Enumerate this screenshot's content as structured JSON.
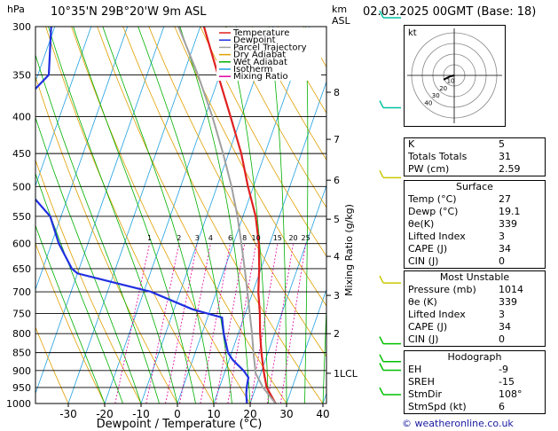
{
  "header": {
    "station": "10°35'N  29B°20'W  9m  ASL",
    "date": "02.03.2025  00GMT  (Base: 18)",
    "hpa_label": "hPa",
    "km_label": "km",
    "asl_label": "ASL"
  },
  "chart_data": {
    "type": "line",
    "subtype": "skew-t log-p",
    "xlabel": "Dewpoint / Temperature (°C)",
    "ylabel": "Mixing Ratio (g/kg)",
    "x_ticks": [
      -30,
      -20,
      -10,
      0,
      10,
      20,
      30,
      40
    ],
    "pressure_levels": [
      300,
      350,
      400,
      450,
      500,
      550,
      600,
      650,
      700,
      750,
      800,
      850,
      900,
      950,
      1000
    ],
    "km_ticks": [
      {
        "label": "8",
        "p": 370
      },
      {
        "label": "7",
        "p": 430
      },
      {
        "label": "6",
        "p": 490
      },
      {
        "label": "5",
        "p": 555
      },
      {
        "label": "4",
        "p": 625
      },
      {
        "label": "3",
        "p": 708
      },
      {
        "label": "2",
        "p": 800
      },
      {
        "label": "1LCL",
        "p": 908
      }
    ],
    "mixing_ratio_labels": [
      "1",
      "2",
      "3",
      "4",
      "6",
      "8",
      "10",
      "15",
      "20",
      "25"
    ],
    "mixing_ratios": [
      1,
      2,
      3,
      4,
      6,
      8,
      10,
      15,
      20,
      25
    ],
    "legend": [
      {
        "name": "Temperature",
        "color": "#e02020"
      },
      {
        "name": "Dewpoint",
        "color": "#2030e0"
      },
      {
        "name": "Parcel Trajectory",
        "color": "#a0a0a0"
      },
      {
        "name": "Dry Adiabat",
        "color": "#e0a000"
      },
      {
        "name": "Wet Adiabat",
        "color": "#00b000"
      },
      {
        "name": "Isotherm",
        "color": "#20a0e0"
      },
      {
        "name": "Mixing Ratio",
        "color": "#e000a0"
      }
    ],
    "series": [
      {
        "name": "Temperature",
        "color": "#e02020",
        "points": [
          [
            1000,
            27
          ],
          [
            950,
            23
          ],
          [
            900,
            20.5
          ],
          [
            850,
            18.2
          ],
          [
            800,
            16
          ],
          [
            750,
            14
          ],
          [
            700,
            11.5
          ],
          [
            650,
            9.5
          ],
          [
            600,
            7
          ],
          [
            550,
            3.5
          ],
          [
            500,
            -1.5
          ],
          [
            450,
            -6.5
          ],
          [
            400,
            -13
          ],
          [
            350,
            -20.5
          ],
          [
            300,
            -29
          ]
        ]
      },
      {
        "name": "Dewpoint",
        "color": "#2030e0",
        "points": [
          [
            1000,
            19.1
          ],
          [
            970,
            18
          ],
          [
            950,
            17.5
          ],
          [
            920,
            17
          ],
          [
            900,
            15
          ],
          [
            870,
            11
          ],
          [
            850,
            9
          ],
          [
            800,
            6
          ],
          [
            760,
            4
          ],
          [
            740,
            -5
          ],
          [
            700,
            -18
          ],
          [
            660,
            -40
          ],
          [
            650,
            -42
          ],
          [
            600,
            -48
          ],
          [
            550,
            -53
          ],
          [
            500,
            -63
          ],
          [
            450,
            -72
          ],
          [
            400,
            -74
          ],
          [
            350,
            -67
          ],
          [
            300,
            -71
          ]
        ]
      },
      {
        "name": "Parcel Trajectory",
        "color": "#a0a0a0",
        "points": [
          [
            1000,
            27
          ],
          [
            950,
            22
          ],
          [
            908,
            18.6
          ],
          [
            850,
            16
          ],
          [
            800,
            13.8
          ],
          [
            750,
            11.2
          ],
          [
            700,
            8.5
          ],
          [
            650,
            5.5
          ],
          [
            600,
            2.2
          ],
          [
            550,
            -1.5
          ],
          [
            500,
            -6
          ],
          [
            450,
            -11.5
          ],
          [
            400,
            -18
          ],
          [
            350,
            -26
          ],
          [
            300,
            -36
          ]
        ]
      }
    ],
    "wind_barbs": [
      {
        "p": 300,
        "color": "#00c0a0"
      },
      {
        "p": 400,
        "color": "#00c0a0"
      },
      {
        "p": 500,
        "color": "#c8c800"
      },
      {
        "p": 700,
        "color": "#c8c800"
      },
      {
        "p": 850,
        "color": "#00c000"
      },
      {
        "p": 900,
        "color": "#00c000"
      },
      {
        "p": 925,
        "color": "#00c000"
      },
      {
        "p": 1000,
        "color": "#00c000"
      }
    ]
  },
  "hodograph": {
    "label": "kt",
    "ring_labels": [
      "10",
      "20",
      "30",
      "40"
    ],
    "points": [
      [
        0,
        0
      ],
      [
        -4,
        -1
      ],
      [
        -8,
        -3
      ],
      [
        -10,
        -4
      ]
    ]
  },
  "indices": {
    "rows": [
      {
        "label": "K",
        "value": "5"
      },
      {
        "label": "Totals Totals",
        "value": "31"
      },
      {
        "label": "PW (cm)",
        "value": "2.59"
      }
    ]
  },
  "surface": {
    "title": "Surface",
    "rows": [
      {
        "label": "Temp (°C)",
        "value": "27"
      },
      {
        "label": "Dewp (°C)",
        "value": "19.1"
      },
      {
        "label": "θe(K)",
        "value": "339"
      },
      {
        "label": "Lifted Index",
        "value": "3"
      },
      {
        "label": "CAPE (J)",
        "value": "34"
      },
      {
        "label": "CIN (J)",
        "value": "0"
      }
    ]
  },
  "most_unstable": {
    "title": "Most Unstable",
    "rows": [
      {
        "label": "Pressure (mb)",
        "value": "1014"
      },
      {
        "label": "θe (K)",
        "value": "339"
      },
      {
        "label": "Lifted Index",
        "value": "3"
      },
      {
        "label": "CAPE (J)",
        "value": "34"
      },
      {
        "label": "CIN (J)",
        "value": "0"
      }
    ]
  },
  "hodograph_panel": {
    "title": "Hodograph",
    "rows": [
      {
        "label": "EH",
        "value": "-9"
      },
      {
        "label": "SREH",
        "value": "-15"
      },
      {
        "label": "StmDir",
        "value": "108°"
      },
      {
        "label": "StmSpd (kt)",
        "value": "6"
      }
    ]
  },
  "copyright": "© weatheronline.co.uk"
}
